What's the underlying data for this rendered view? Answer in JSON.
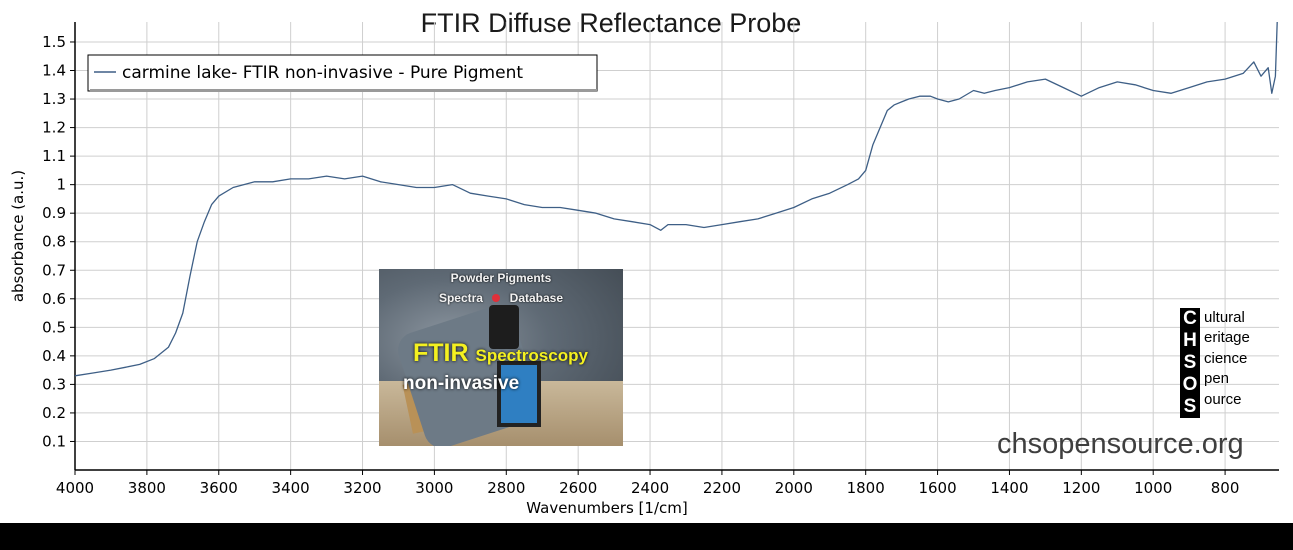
{
  "chart_data": {
    "type": "line",
    "title": "FTIR Diffuse Reflectance Probe",
    "xlabel": "Wavenumbers [1/cm]",
    "ylabel": "absorbance (a.u.)",
    "xlim": [
      4000,
      650
    ],
    "x_reversed": true,
    "ylim": [
      0,
      1.57
    ],
    "x_ticks": [
      4000,
      3800,
      3600,
      3400,
      3200,
      3000,
      2800,
      2600,
      2400,
      2200,
      2000,
      1800,
      1600,
      1400,
      1200,
      1000,
      800
    ],
    "y_ticks": [
      0.1,
      0.2,
      0.3,
      0.4,
      0.5,
      0.6,
      0.7,
      0.8,
      0.9,
      1,
      1.1,
      1.2,
      1.3,
      1.4,
      1.5
    ],
    "grid": true,
    "legend_position": "top-left",
    "line_color": "#3e5f86",
    "series": [
      {
        "name": "carmine lake- FTIR non-invasive - Pure Pigment",
        "x": [
          4000,
          3950,
          3900,
          3860,
          3820,
          3780,
          3740,
          3720,
          3700,
          3680,
          3660,
          3640,
          3620,
          3600,
          3560,
          3500,
          3450,
          3400,
          3350,
          3300,
          3250,
          3200,
          3150,
          3100,
          3050,
          3000,
          2950,
          2900,
          2850,
          2800,
          2750,
          2700,
          2650,
          2600,
          2550,
          2500,
          2450,
          2400,
          2370,
          2350,
          2300,
          2250,
          2200,
          2150,
          2100,
          2050,
          2000,
          1950,
          1900,
          1850,
          1820,
          1800,
          1780,
          1760,
          1740,
          1720,
          1700,
          1680,
          1650,
          1620,
          1600,
          1570,
          1540,
          1500,
          1470,
          1440,
          1400,
          1350,
          1300,
          1250,
          1200,
          1150,
          1100,
          1050,
          1000,
          950,
          900,
          850,
          800,
          750,
          720,
          700,
          680,
          670,
          660,
          655
        ],
        "values": [
          0.33,
          0.34,
          0.35,
          0.36,
          0.37,
          0.39,
          0.43,
          0.48,
          0.55,
          0.68,
          0.8,
          0.87,
          0.93,
          0.96,
          0.99,
          1.01,
          1.01,
          1.02,
          1.02,
          1.03,
          1.02,
          1.03,
          1.01,
          1.0,
          0.99,
          0.99,
          1.0,
          0.97,
          0.96,
          0.95,
          0.93,
          0.92,
          0.92,
          0.91,
          0.9,
          0.88,
          0.87,
          0.86,
          0.84,
          0.86,
          0.86,
          0.85,
          0.86,
          0.87,
          0.88,
          0.9,
          0.92,
          0.95,
          0.97,
          1.0,
          1.02,
          1.05,
          1.14,
          1.2,
          1.26,
          1.28,
          1.29,
          1.3,
          1.31,
          1.31,
          1.3,
          1.29,
          1.3,
          1.33,
          1.32,
          1.33,
          1.34,
          1.36,
          1.37,
          1.34,
          1.31,
          1.34,
          1.36,
          1.35,
          1.33,
          1.32,
          1.34,
          1.36,
          1.37,
          1.39,
          1.43,
          1.38,
          1.41,
          1.32,
          1.38,
          1.57
        ]
      }
    ]
  },
  "inset": {
    "line1": "Powder Pigments",
    "line2": "Spectra",
    "line3": "Database",
    "ftir": "FTIR",
    "spectroscopy": "Spectroscopy",
    "noninvasive": "non-invasive"
  },
  "logo": {
    "letters": [
      "C",
      "H",
      "S",
      "O",
      "S"
    ],
    "words": [
      "ultural",
      "eritage",
      "cience",
      "pen",
      "ource"
    ]
  },
  "website": "chsopensource.org"
}
